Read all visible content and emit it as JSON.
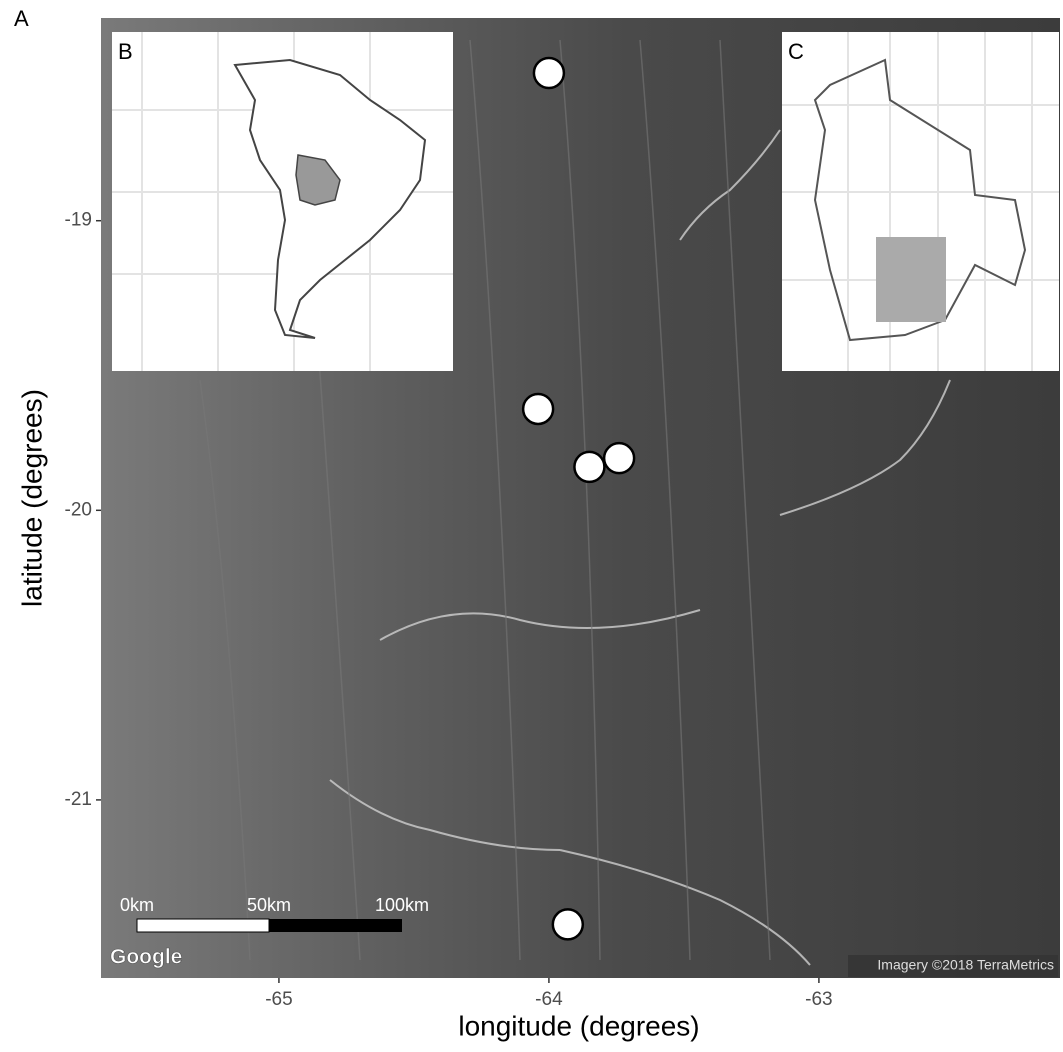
{
  "chart_data": {
    "type": "scatter",
    "panel_label": "A",
    "x_label": "longitude (degrees)",
    "y_label": "latitude (degrees)",
    "x": [
      -64.0,
      -64.04,
      -63.85,
      -63.74,
      -63.93
    ],
    "y": [
      -18.49,
      -19.65,
      -19.85,
      -19.82,
      -21.43
    ],
    "color": "#ffffff",
    "xlim": [
      -65.659,
      -62.107
    ],
    "ylim": [
      -21.615,
      -18.3
    ],
    "xticks": [
      -65,
      -64,
      -63
    ],
    "yticks": [
      -21,
      -20,
      -19
    ],
    "insets": [
      {
        "label": "B"
      },
      {
        "label": "C"
      }
    ],
    "scale_bar_labels": [
      "0km",
      "50km",
      "100km"
    ],
    "logo": "Google",
    "attribution": "Imagery ©2018 TerraMetrics"
  }
}
